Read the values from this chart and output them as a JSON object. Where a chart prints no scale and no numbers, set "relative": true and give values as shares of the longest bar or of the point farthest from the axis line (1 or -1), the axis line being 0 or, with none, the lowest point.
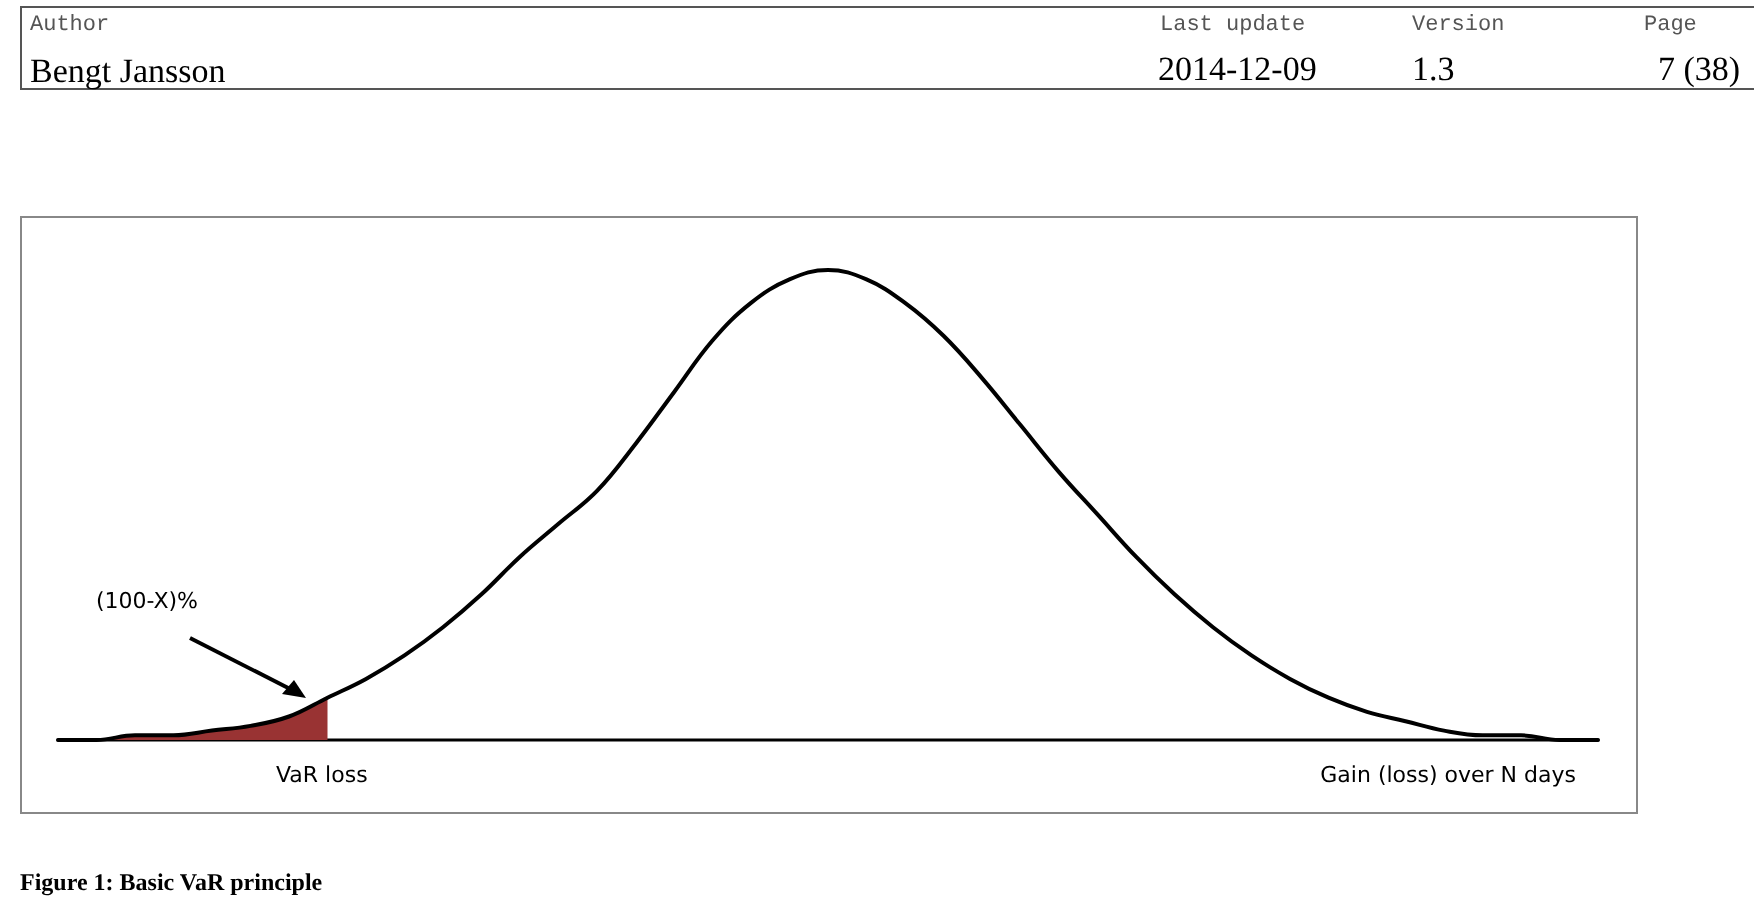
{
  "chart_data": {
    "type": "line",
    "relative": true,
    "xlabel": "Gain (loss) over N days",
    "annotations": [
      "Author",
      "Last update",
      "Version",
      "Page",
      "Bengt Jansson",
      "2014-12-09",
      "1.3",
      "7 (38)",
      "(100-X)%",
      "VaR loss",
      "Figure 1: Basic VaR principle"
    ],
    "categories": [
      null,
      null,
      null,
      null,
      null,
      null,
      null,
      null,
      null,
      null,
      null,
      null,
      null,
      null,
      null,
      null,
      null,
      null,
      null,
      null,
      null,
      null,
      null,
      null,
      null,
      null,
      null,
      null,
      null,
      null,
      null,
      null,
      null,
      null,
      null,
      null,
      null,
      null,
      null,
      null,
      null
    ],
    "series": [
      {
        "color": "#000000",
        "values": [
          0,
          0,
          0.01,
          0.01,
          0.02,
          0.03,
          0.05,
          0.09,
          0.13,
          0.18,
          0.24,
          0.31,
          0.39,
          0.46,
          0.53,
          0.63,
          0.74,
          0.85,
          0.93,
          0.98,
          1,
          0.98,
          0.93,
          0.86,
          0.77,
          0.67,
          0.57,
          0.48,
          0.39,
          0.31,
          0.24,
          0.18,
          0.13,
          0.09,
          0.06,
          0.04,
          0.02,
          0.01,
          0.01,
          0,
          0
        ]
      },
      {
        "type": "area",
        "color": "#993333",
        "values": [
          0,
          0,
          0.01,
          0.01,
          0.02,
          0.03,
          0.05,
          0.09,
          null,
          null,
          null,
          null,
          null,
          null,
          null,
          null,
          null,
          null,
          null,
          null,
          null,
          null,
          null,
          null,
          null,
          null,
          null,
          null,
          null,
          null,
          null,
          null,
          null,
          null,
          null,
          null,
          null,
          null,
          null,
          null,
          null
        ]
      }
    ]
  }
}
